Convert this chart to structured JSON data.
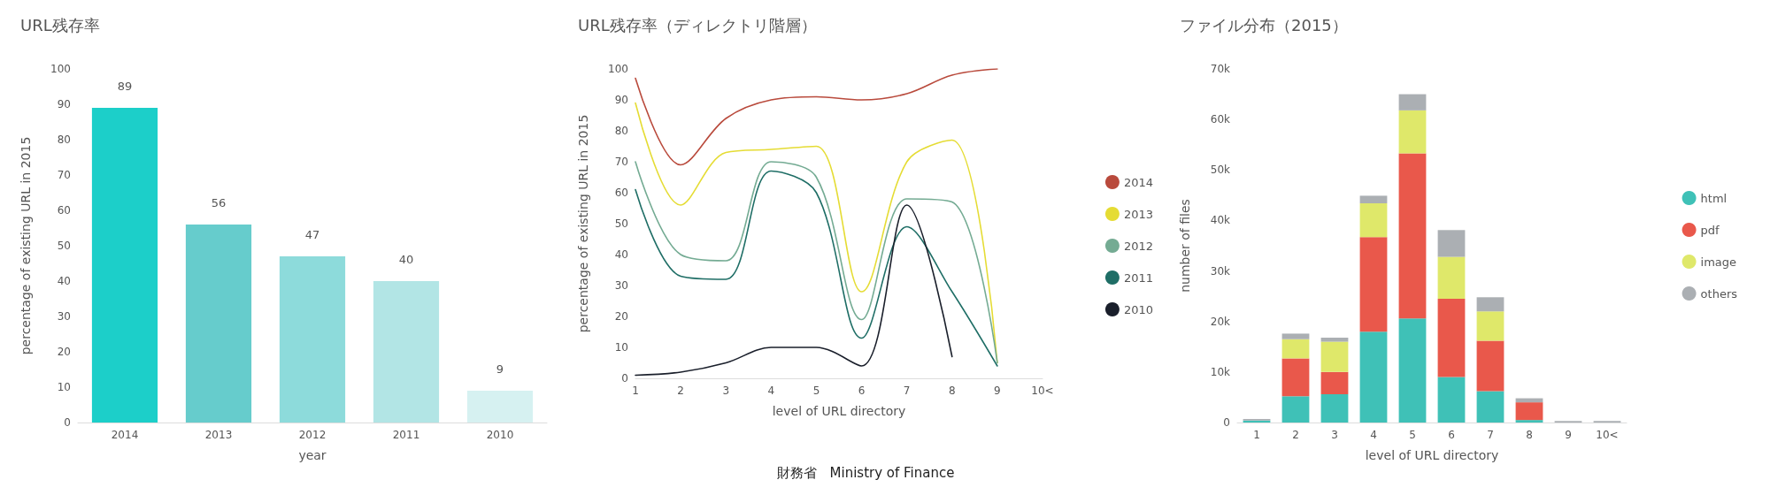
{
  "chart_data": [
    {
      "type": "bar",
      "title": "URL残存率",
      "xlabel": "year",
      "ylabel": "percentage of existing URL in 2015",
      "categories": [
        "2014",
        "2013",
        "2012",
        "2011",
        "2010"
      ],
      "values": [
        89,
        56,
        47,
        40,
        9
      ],
      "colors": [
        "#1ccfc9",
        "#66cccc",
        "#8ddbdb",
        "#b2e5e5",
        "#d6f1f1"
      ],
      "ylim": [
        0,
        100
      ],
      "yticks": [
        0,
        10,
        20,
        30,
        40,
        50,
        60,
        70,
        80,
        90,
        100
      ],
      "data_labels": true,
      "grid": false,
      "legend": false
    },
    {
      "type": "line",
      "title": "URL残存率（ディレクトリ階層）",
      "xlabel": "level of URL directory",
      "ylabel": "percentage of existing URL in 2015",
      "categories": [
        "1",
        "2",
        "3",
        "4",
        "5",
        "6",
        "7",
        "8",
        "9",
        "10<"
      ],
      "ylim": [
        0,
        100
      ],
      "yticks": [
        0,
        10,
        20,
        30,
        40,
        50,
        60,
        70,
        80,
        90,
        100
      ],
      "grid": false,
      "legend": "right",
      "marker": "none",
      "annotations": [
        "財務省　Ministry of Finance"
      ],
      "series": [
        {
          "name": "2014",
          "color": "#b94a3c",
          "values": [
            97,
            69,
            84,
            90,
            91,
            90,
            92,
            98,
            100,
            null
          ]
        },
        {
          "name": "2013",
          "color": "#e5dc34",
          "values": [
            89,
            56,
            73,
            74,
            75,
            28,
            70,
            77,
            5,
            null
          ]
        },
        {
          "name": "2012",
          "color": "#74ab93",
          "values": [
            70,
            40,
            38,
            70,
            65,
            19,
            58,
            57,
            5,
            null
          ]
        },
        {
          "name": "2011",
          "color": "#1f6e66",
          "values": [
            61,
            33,
            32,
            67,
            60,
            13,
            49,
            28,
            4,
            null
          ]
        },
        {
          "name": "2010",
          "color": "#1a1f2b",
          "values": [
            1,
            2,
            5,
            10,
            10,
            4,
            56,
            7,
            null,
            null
          ]
        }
      ]
    },
    {
      "type": "bar",
      "stacked": true,
      "title": "ファイル分布（2015）",
      "xlabel": "level of URL directory",
      "ylabel": "number of files",
      "categories": [
        "1",
        "2",
        "3",
        "4",
        "5",
        "6",
        "7",
        "8",
        "9",
        "10<"
      ],
      "ylim": [
        0,
        70000
      ],
      "yticks": [
        {
          "value": 0,
          "label": "0"
        },
        {
          "value": 10000,
          "label": "10k"
        },
        {
          "value": 20000,
          "label": "20k"
        },
        {
          "value": 30000,
          "label": "30k"
        },
        {
          "value": 40000,
          "label": "40k"
        },
        {
          "value": 50000,
          "label": "50k"
        },
        {
          "value": 60000,
          "label": "60k"
        },
        {
          "value": 70000,
          "label": "70k"
        }
      ],
      "grid": false,
      "legend": "right",
      "series": [
        {
          "name": "html",
          "color": "#3fc1b7",
          "values": [
            400,
            5200,
            5600,
            18000,
            20600,
            9000,
            6200,
            500,
            0,
            0
          ]
        },
        {
          "name": "pdf",
          "color": "#e9584b",
          "values": [
            0,
            7500,
            4400,
            18700,
            32700,
            15500,
            10000,
            3500,
            0,
            0
          ]
        },
        {
          "name": "image",
          "color": "#dfe86a",
          "values": [
            0,
            3800,
            6000,
            6700,
            8500,
            8300,
            5800,
            0,
            0,
            0
          ]
        },
        {
          "name": "others",
          "color": "#abafb3",
          "values": [
            300,
            1100,
            800,
            1500,
            3200,
            5300,
            2800,
            800,
            300,
            300
          ]
        }
      ]
    }
  ]
}
